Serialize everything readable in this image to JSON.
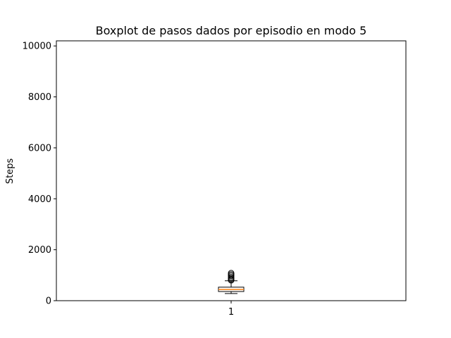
{
  "chart_data": {
    "type": "boxplot",
    "title": "Boxplot de pasos dados por episodio en modo 5",
    "xlabel": "",
    "ylabel": "Steps",
    "ylim": [
      0,
      10200
    ],
    "yticks": [
      0,
      2000,
      4000,
      6000,
      8000,
      10000
    ],
    "yticks_labels": [
      "0",
      "2000",
      "4000",
      "6000",
      "8000",
      "10000"
    ],
    "categories": [
      "1"
    ],
    "boxes": [
      {
        "label": "1",
        "whisker_low": 280,
        "q1": 360,
        "median": 440,
        "q3": 530,
        "whisker_high": 780,
        "outliers": [
          800,
          840,
          880,
          930,
          980,
          1030,
          1080
        ]
      }
    ],
    "grid": false,
    "colors": {
      "median": "#ff7f0e",
      "box": "#000000",
      "background": "#ffffff"
    }
  }
}
